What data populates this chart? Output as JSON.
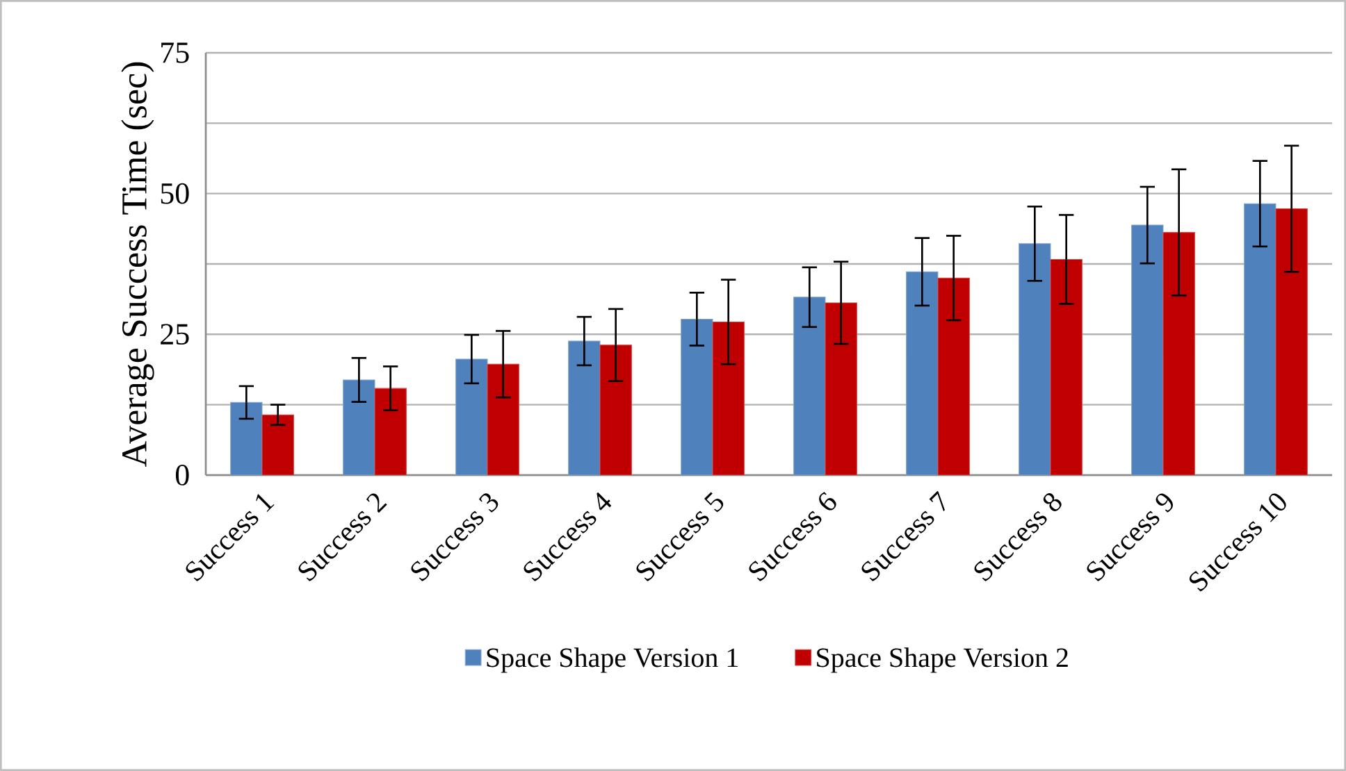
{
  "chart_data": {
    "type": "bar",
    "ylabel": "Average Success Time (sec)",
    "categories": [
      "Success 1",
      "Success 2",
      "Success 3",
      "Success 4",
      "Success 5",
      "Success 6",
      "Success 7",
      "Success 8",
      "Success 9",
      "Success 10"
    ],
    "series": [
      {
        "name": "Space Shape Version 1",
        "color": "#4f81bd",
        "values": [
          12.9,
          16.9,
          20.6,
          23.8,
          27.7,
          31.6,
          36.1,
          41.1,
          44.4,
          48.2
        ],
        "errors": [
          2.9,
          3.9,
          4.3,
          4.3,
          4.7,
          5.3,
          6.0,
          6.6,
          6.8,
          7.6
        ]
      },
      {
        "name": "Space Shape Version 2",
        "color": "#c00000",
        "values": [
          10.7,
          15.4,
          19.7,
          23.1,
          27.2,
          30.6,
          35.0,
          38.3,
          43.1,
          47.3
        ],
        "errors": [
          1.8,
          3.9,
          5.9,
          6.4,
          7.5,
          7.3,
          7.5,
          7.9,
          11.2,
          11.2
        ]
      }
    ],
    "ylim": [
      0,
      75
    ],
    "yticks": [
      0,
      {
        "value": 12.5,
        "label": null
      },
      25,
      {
        "value": 37.5,
        "label": null
      },
      50,
      {
        "value": 62.5,
        "label": null
      },
      75
    ],
    "grid": "y",
    "legend": "bottom"
  }
}
